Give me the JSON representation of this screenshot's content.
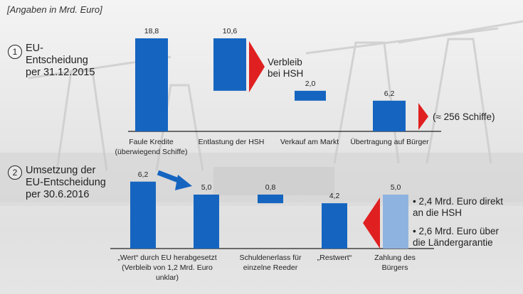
{
  "header": {
    "unit_label": "[Angaben in Mrd. Euro]"
  },
  "colors": {
    "bar": "#1565c0",
    "bar_light": "#8fb3e0",
    "arrow_red": "#e02020",
    "arrow_blue": "#1565c0",
    "axis": "#222222"
  },
  "sections": [
    {
      "number": "1",
      "title": "EU-\nEntscheidung\nper 31.12.2015"
    },
    {
      "number": "2",
      "title": "Umsetzung der\nEU-Entscheidung\nper 30.6.2016"
    }
  ],
  "notes": {
    "verbleib": "Verbleib\nbei HSH",
    "schiffe": "(≈ 256 Schiffe)"
  },
  "bullets": [
    "• 2,4 Mrd. Euro direkt\n  an die HSH",
    "• 2,6 Mrd. Euro über\n  die Ländergarantie"
  ],
  "chart_data": [
    {
      "type": "bar",
      "title": "EU-Entscheidung per 31.12.2015",
      "categories": [
        "Faule Kredite\n(überwiegend Schiffe)",
        "Entlastung der HSH",
        "Verkauf am Markt",
        "Übertragung auf Bürger"
      ],
      "values": [
        18.8,
        10.6,
        2.0,
        6.2
      ],
      "value_labels": [
        "18,8",
        "10,6",
        "2,0",
        "6,2"
      ],
      "style": "waterfall"
    },
    {
      "type": "bar",
      "title": "Umsetzung der EU-Entscheidung per 30.6.2016",
      "categories": [
        "„Wert“ durch EU herabgesetzt\n(Verbleib von 1,2 Mrd. Euro\nunklar)",
        "",
        "Schuldenerlass für\neinzelne Reeder",
        "„Restwert“",
        "Zahlung des\nBürgers"
      ],
      "values": [
        6.2,
        5.0,
        0.8,
        4.2,
        5.0
      ],
      "value_labels": [
        "6,2",
        "5,0",
        "0,8",
        "4,2",
        "5,0"
      ],
      "style": "waterfall"
    }
  ]
}
